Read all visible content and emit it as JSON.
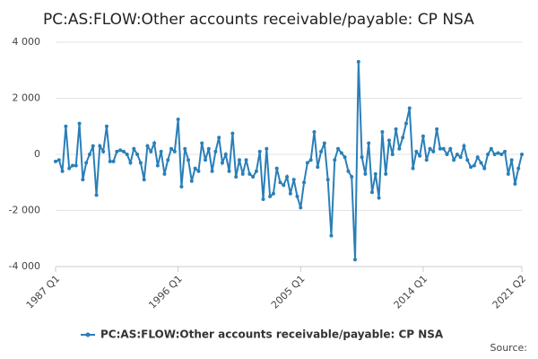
{
  "chart_data": {
    "type": "line",
    "title": "PC:AS:FLOW:Other accounts receivable/payable: CP NSA",
    "source_label": "Source:",
    "categories": [
      "1987 Q1",
      null,
      null,
      null,
      null,
      null,
      null,
      null,
      null,
      null,
      null,
      null,
      null,
      null,
      null,
      null,
      null,
      null,
      null,
      null,
      null,
      null,
      null,
      null,
      null,
      null,
      null,
      null,
      null,
      null,
      null,
      null,
      null,
      null,
      null,
      null,
      "1996 Q1",
      null,
      null,
      null,
      null,
      null,
      null,
      null,
      null,
      null,
      null,
      null,
      null,
      null,
      null,
      null,
      null,
      null,
      null,
      null,
      null,
      null,
      null,
      null,
      null,
      null,
      null,
      null,
      null,
      null,
      null,
      null,
      null,
      null,
      null,
      null,
      "2005 Q1",
      null,
      null,
      null,
      null,
      null,
      null,
      null,
      null,
      null,
      null,
      null,
      null,
      null,
      null,
      null,
      null,
      null,
      null,
      null,
      null,
      null,
      null,
      null,
      null,
      null,
      null,
      null,
      null,
      null,
      null,
      null,
      null,
      null,
      null,
      null,
      "2014 Q1",
      null,
      null,
      null,
      null,
      null,
      null,
      null,
      null,
      null,
      null,
      null,
      null,
      null,
      null,
      null,
      null,
      null,
      null,
      null,
      null,
      null,
      null,
      null,
      null,
      null,
      null,
      null,
      null,
      "2021 Q2"
    ],
    "series": [
      {
        "name": "PC:AS:FLOW:Other accounts receivable/payable: CP NSA",
        "color": "#2a7fb8",
        "values": [
          -250,
          -200,
          -600,
          1000,
          -500,
          -400,
          -400,
          1100,
          -900,
          -300,
          0,
          300,
          -1450,
          300,
          100,
          1000,
          -250,
          -250,
          100,
          150,
          100,
          0,
          -300,
          200,
          0,
          -300,
          -900,
          300,
          100,
          400,
          -400,
          100,
          -700,
          -200,
          200,
          100,
          1250,
          -1150,
          200,
          -200,
          -950,
          -500,
          -600,
          400,
          -200,
          200,
          -600,
          100,
          600,
          -300,
          0,
          -600,
          750,
          -800,
          -200,
          -700,
          -200,
          -700,
          -800,
          -600,
          100,
          -1600,
          200,
          -1500,
          -1400,
          -500,
          -1000,
          -1100,
          -800,
          -1400,
          -900,
          -1500,
          -1900,
          -1000,
          -300,
          -200,
          800,
          -450,
          100,
          400,
          -900,
          -2900,
          -200,
          200,
          50,
          -100,
          -600,
          -800,
          -3750,
          3300,
          -100,
          -700,
          400,
          -1350,
          -700,
          -1550,
          800,
          -700,
          500,
          0,
          900,
          200,
          600,
          1100,
          1650,
          -500,
          100,
          -50,
          650,
          -200,
          200,
          100,
          900,
          200,
          200,
          0,
          200,
          -200,
          0,
          -100,
          300,
          -200,
          -450,
          -400,
          -100,
          -300,
          -500,
          0,
          200,
          0,
          50,
          0,
          100,
          -700,
          -200,
          -1050,
          -500,
          0
        ]
      }
    ],
    "ylim": [
      -4000,
      4000
    ],
    "yticks": [
      {
        "value": -4000,
        "label": "-4 000"
      },
      {
        "value": -2000,
        "label": "-2 000"
      },
      0,
      {
        "value": 2000,
        "label": "2 000"
      },
      {
        "value": 4000,
        "label": "4 000"
      }
    ],
    "grid": true,
    "legend": "bottom"
  }
}
